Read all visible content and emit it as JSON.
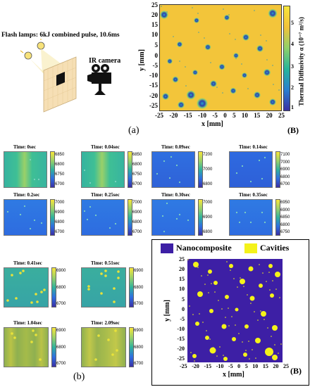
{
  "setup": {
    "flash_label": "Flash lamps: 6kJ combined pulse, 10.6ms",
    "camera_label": "IR camera"
  },
  "diffusivity_map": {
    "panel_tag": "(a)",
    "corner_tag": "(B)",
    "xlabel": "x [mm]",
    "ylabel": "y [mm]",
    "x_ticks": [
      "-25",
      "-20",
      "-15",
      "-10",
      "-5",
      "0",
      "5",
      "10",
      "15",
      "20",
      "25"
    ],
    "y_ticks": [
      "25",
      "20",
      "15",
      "10",
      "5",
      "0",
      "-5",
      "-10",
      "-15",
      "-20",
      "-25"
    ],
    "colorbar_label": "Thermal Diffusivity α (10⁻⁷ m²/s)",
    "colorbar_ticks": [
      "5",
      "4",
      "3",
      "2",
      "1"
    ]
  },
  "thermograms": {
    "panel_tag": "(b)",
    "frames": [
      {
        "time": "Time: 0sec",
        "ticks": [
          "6850",
          "6800",
          "6750",
          "6700"
        ]
      },
      {
        "time": "Time: 0.04sec",
        "ticks": [
          "6850",
          "6800",
          "6750",
          "6700"
        ]
      },
      {
        "time": "Time: 0.09sec",
        "ticks": [
          "7200",
          "7000",
          "6800"
        ]
      },
      {
        "time": "Time: 0.14sec",
        "ticks": [
          "7100",
          "7000",
          "6900",
          "6800",
          "6700"
        ]
      },
      {
        "time": "Time: 0.2sec",
        "ticks": [
          "7000",
          "6900",
          "6800",
          "6700"
        ]
      },
      {
        "time": "Time: 0.25sec",
        "ticks": [
          "7000",
          "6900",
          "6800",
          "6700"
        ]
      },
      {
        "time": "Time: 0.30sec",
        "ticks": [
          "7000",
          "6900",
          "6800"
        ]
      },
      {
        "time": "Time: 0.35sec",
        "ticks": [
          "6950",
          "6900",
          "6850",
          "6800",
          "6750"
        ]
      },
      {
        "time": "Time: 0.41sec",
        "ticks": [
          "6900",
          "6800",
          "6700"
        ]
      },
      {
        "time": "Time: 0.51sec",
        "ticks": [
          "6900",
          "6800",
          "6700"
        ]
      },
      {
        "time": "Time: 1.04sec",
        "ticks": [
          "6900",
          "6800",
          "6700"
        ]
      },
      {
        "time": "Time: 2.09sec",
        "ticks": [
          "6900",
          "6800",
          "6700"
        ]
      }
    ]
  },
  "segmentation": {
    "legend_nanocomposite": "Nanocomposite",
    "legend_cavities": "Cavities",
    "corner_tag": "(B)",
    "xlabel": "x [mm]",
    "ylabel": "y [mm]",
    "x_ticks": [
      "-25",
      "-20",
      "-15",
      "-10",
      "-5",
      "0",
      "5",
      "10",
      "15",
      "20",
      "25"
    ],
    "y_ticks": [
      "25",
      "20",
      "15",
      "10",
      "5",
      "0",
      "-5",
      "-10",
      "-15",
      "-20",
      "-25"
    ]
  },
  "colors": {
    "map_yellow": "#f3c53a",
    "nanocomposite_purple": "#3d1fa5",
    "cavity_yellow": "#f4f21a",
    "thermo_blue": "#2f6fe0",
    "thermo_green": "#3bb59c"
  }
}
